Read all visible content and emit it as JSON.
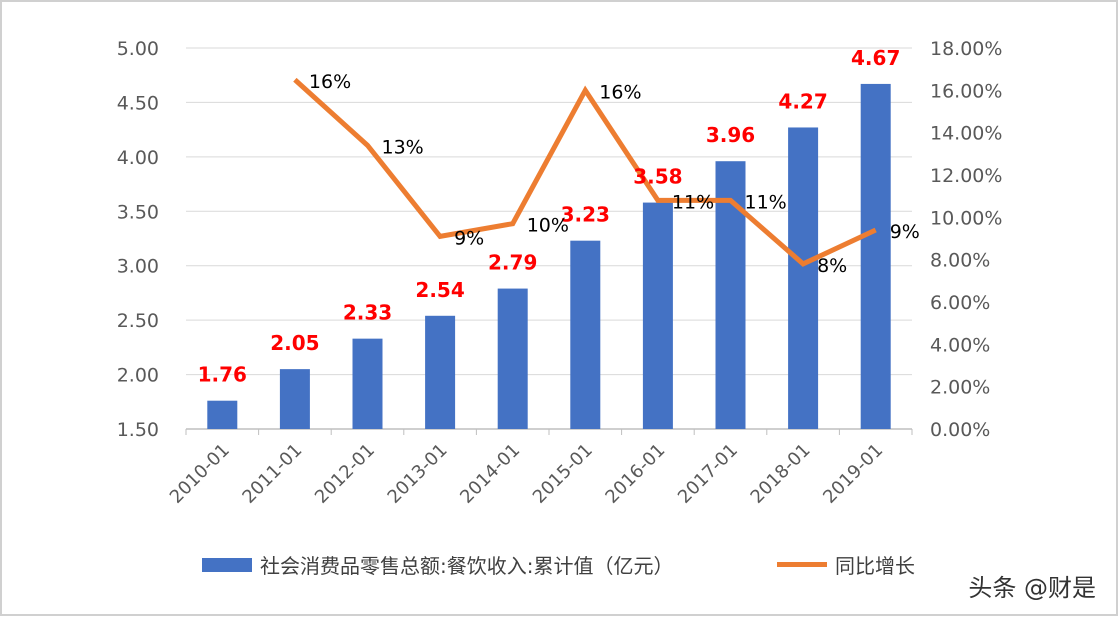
{
  "chart_data": {
    "type": "bar",
    "categories": [
      "2010-01",
      "2011-01",
      "2012-01",
      "2013-01",
      "2014-01",
      "2015-01",
      "2016-01",
      "2017-01",
      "2018-01",
      "2019-01"
    ],
    "series": [
      {
        "name": "社会消费品零售总额:餐饮收入:累计值（亿元）",
        "type": "bar",
        "axis": "left",
        "values": [
          1.76,
          2.05,
          2.33,
          2.54,
          2.79,
          3.23,
          3.58,
          3.96,
          4.27,
          4.67
        ],
        "labels": [
          "1.76",
          "2.05",
          "2.33",
          "2.54",
          "2.79",
          "3.23",
          "3.58",
          "3.96",
          "4.27",
          "4.67"
        ]
      },
      {
        "name": "同比增长",
        "type": "line",
        "axis": "right",
        "values": [
          null,
          0.165,
          0.134,
          0.091,
          0.097,
          0.16,
          0.108,
          0.108,
          0.078,
          0.094
        ],
        "labels": [
          "",
          "16%",
          "13%",
          "9%",
          "10%",
          "16%",
          "11%",
          "11%",
          "8%",
          "9%"
        ]
      }
    ],
    "left_axis": {
      "ylim": [
        1.5,
        5.0
      ],
      "ticks": [
        "1.50",
        "2.00",
        "2.50",
        "3.00",
        "3.50",
        "4.00",
        "4.50",
        "5.00"
      ]
    },
    "right_axis": {
      "ylim": [
        0,
        0.18
      ],
      "ticks": [
        "0.00%",
        "2.00%",
        "4.00%",
        "6.00%",
        "8.00%",
        "10.00%",
        "12.00%",
        "14.00%",
        "16.00%",
        "18.00%"
      ]
    },
    "grid": true,
    "legend_position": "bottom",
    "colors": {
      "bar": "#4472C4",
      "line": "#ED7D31",
      "bar_label": "#FF0000",
      "line_label": "#000000",
      "grid": "#d9d9d9",
      "tick": "#595959"
    }
  },
  "legend": {
    "bar_label": "社会消费品零售总额:餐饮收入:累计值（亿元）",
    "line_label": "同比增长"
  },
  "watermark": "头条 @财是"
}
